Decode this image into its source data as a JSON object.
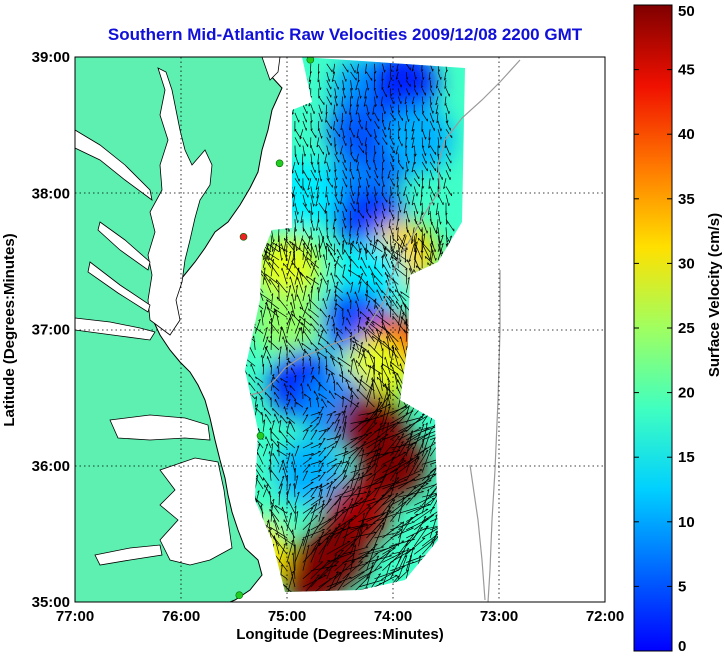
{
  "chart_data": {
    "type": "heatmap",
    "title": "Southern Mid-Atlantic Raw Velocities 2009/12/08 2200 GMT",
    "xlabel": "Longitude (Degrees:Minutes)",
    "ylabel": "Latitude (Degrees:Minutes)",
    "colorbar_label": "Surface Velocity (cm/s)",
    "xlim": [
      -77,
      -72
    ],
    "ylim": [
      35,
      39
    ],
    "x_ticks": [
      {
        "value": -77,
        "label": "77:00"
      },
      {
        "value": -76,
        "label": "76:00"
      },
      {
        "value": -75,
        "label": "75:00"
      },
      {
        "value": -74,
        "label": "74:00"
      },
      {
        "value": -73,
        "label": "73:00"
      },
      {
        "value": -72,
        "label": "72:00"
      }
    ],
    "y_ticks": [
      {
        "value": 35,
        "label": "35:00"
      },
      {
        "value": 36,
        "label": "36:00"
      },
      {
        "value": 37,
        "label": "37:00"
      },
      {
        "value": 38,
        "label": "38:00"
      },
      {
        "value": 39,
        "label": "39:00"
      }
    ],
    "colorbar_range": [
      0,
      50
    ],
    "colorbar_ticks": [
      0,
      5,
      10,
      15,
      20,
      25,
      30,
      35,
      40,
      45,
      50
    ],
    "colormap": "jet",
    "grid": true,
    "colors": {
      "land": "#5ef0b0",
      "coastline": "#000000",
      "bathymetry": "#9a9a9a",
      "title": "#1010d8",
      "site_marker": "#22cc22",
      "site_marker_inactive": "#ee2222",
      "vector": "#000000"
    },
    "radar_sites": [
      {
        "lon": -74.78,
        "lat": 38.98,
        "status": "active"
      },
      {
        "lon": -75.07,
        "lat": 38.22,
        "status": "active"
      },
      {
        "lon": -75.41,
        "lat": 37.68,
        "status": "inactive"
      },
      {
        "lon": -75.25,
        "lat": 36.22,
        "status": "active"
      },
      {
        "lon": -75.45,
        "lat": 35.05,
        "status": "active"
      }
    ],
    "velocity_zones": [
      {
        "lon": -74.25,
        "lat": 38.75,
        "speed": 14
      },
      {
        "lon": -73.9,
        "lat": 38.8,
        "speed": 8
      },
      {
        "lon": -74.3,
        "lat": 38.45,
        "speed": 11
      },
      {
        "lon": -74.1,
        "lat": 38.3,
        "speed": 10
      },
      {
        "lon": -73.75,
        "lat": 38.4,
        "speed": 15
      },
      {
        "lon": -74.4,
        "lat": 38.0,
        "speed": 13
      },
      {
        "lon": -74.2,
        "lat": 37.8,
        "speed": 9
      },
      {
        "lon": -74.85,
        "lat": 38.0,
        "speed": 18
      },
      {
        "lon": -73.9,
        "lat": 37.55,
        "speed": 33
      },
      {
        "lon": -74.2,
        "lat": 37.4,
        "speed": 18
      },
      {
        "lon": -75.0,
        "lat": 37.45,
        "speed": 30
      },
      {
        "lon": -75.0,
        "lat": 37.05,
        "speed": 26
      },
      {
        "lon": -74.35,
        "lat": 37.05,
        "speed": 10
      },
      {
        "lon": -74.0,
        "lat": 36.85,
        "speed": 42
      },
      {
        "lon": -74.15,
        "lat": 36.7,
        "speed": 30
      },
      {
        "lon": -74.85,
        "lat": 36.6,
        "speed": 8
      },
      {
        "lon": -74.55,
        "lat": 36.45,
        "speed": 13
      },
      {
        "lon": -74.2,
        "lat": 36.3,
        "speed": 50
      },
      {
        "lon": -74.0,
        "lat": 36.0,
        "speed": 50
      },
      {
        "lon": -74.35,
        "lat": 35.65,
        "speed": 48
      },
      {
        "lon": -74.55,
        "lat": 35.35,
        "speed": 50
      },
      {
        "lon": -74.75,
        "lat": 35.2,
        "speed": 50
      },
      {
        "lon": -75.0,
        "lat": 35.8,
        "speed": 22
      },
      {
        "lon": -74.8,
        "lat": 35.95,
        "speed": 15
      },
      {
        "lon": -75.3,
        "lat": 35.35,
        "speed": 32
      }
    ]
  }
}
